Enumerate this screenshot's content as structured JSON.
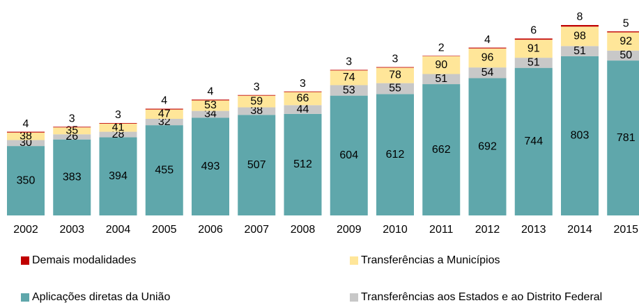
{
  "chart_data": {
    "type": "stacked-bar",
    "categories": [
      "2002",
      "2003",
      "2004",
      "2005",
      "2006",
      "2007",
      "2008",
      "2009",
      "2010",
      "2011",
      "2012",
      "2013",
      "2014",
      "2015"
    ],
    "series": [
      {
        "name": "Aplicações diretas da União",
        "color": "#5fa7ab",
        "values": [
          350,
          383,
          394,
          455,
          493,
          507,
          512,
          604,
          612,
          662,
          692,
          744,
          803,
          781
        ]
      },
      {
        "name": "Transferências aos Estados e ao Distrito Federal",
        "color": "#c8c8c8",
        "values": [
          30,
          26,
          28,
          32,
          34,
          38,
          44,
          53,
          55,
          51,
          54,
          51,
          51,
          50
        ]
      },
      {
        "name": "Transferências a Municípios",
        "color": "#ffe699",
        "values": [
          38,
          35,
          41,
          47,
          53,
          59,
          66,
          74,
          78,
          90,
          96,
          91,
          98,
          92
        ]
      },
      {
        "name": "Demais modalidades",
        "color": "#c00000",
        "values": [
          4,
          3,
          3,
          4,
          4,
          3,
          3,
          3,
          3,
          2,
          4,
          6,
          8,
          5
        ]
      }
    ],
    "ylim": [
      0,
      1000
    ]
  }
}
